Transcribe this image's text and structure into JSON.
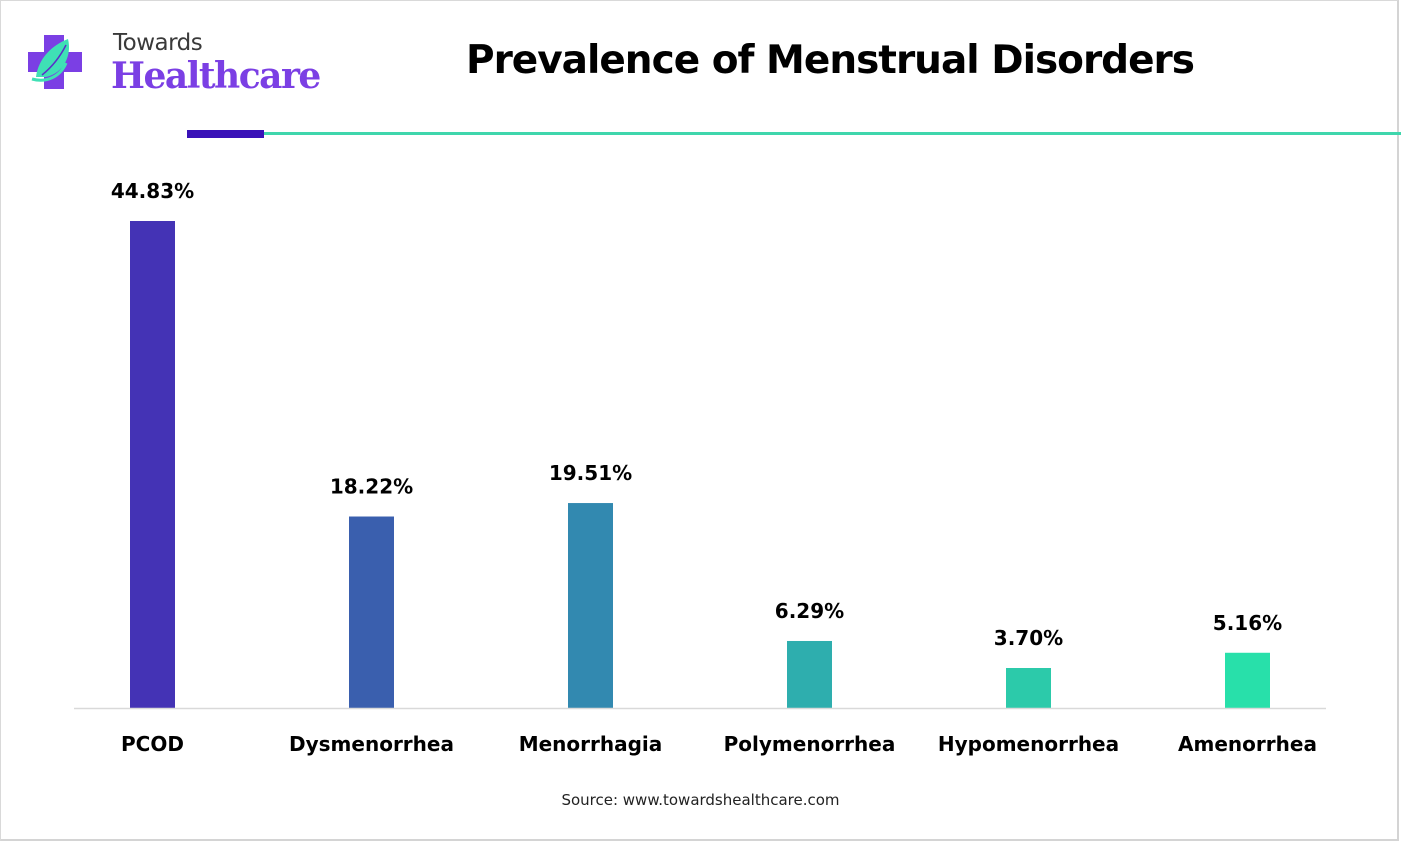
{
  "brand": {
    "name_top": "Towards",
    "name_main": "Healthcare",
    "icon": "cross-leaf-logo-icon",
    "colors": {
      "purple": "#7b3fe4",
      "teal": "#3fe0b5",
      "dark": "#3a12b8"
    }
  },
  "chart_data": {
    "type": "bar",
    "title": "Prevalence of Menstrual Disorders",
    "xlabel": "",
    "ylabel": "",
    "categories": [
      "PCOD",
      "Dysmenorrhea",
      "Menorrhagia",
      "Polymenorrhea",
      "Hypomenorrhea",
      "Amenorrhea"
    ],
    "values": [
      44.83,
      18.22,
      19.51,
      6.29,
      3.7,
      5.16
    ],
    "value_labels": [
      "44.83%",
      "18.22%",
      "19.51%",
      "6.29%",
      "3.70%",
      "5.16%"
    ],
    "colors": [
      "#4433b5",
      "#3a5fae",
      "#3289b0",
      "#2eaeae",
      "#2ccaaa",
      "#28e0aa"
    ],
    "unit": "%",
    "grid": false,
    "legend": "none"
  },
  "source": "Source: www.towardshealthcare.com"
}
